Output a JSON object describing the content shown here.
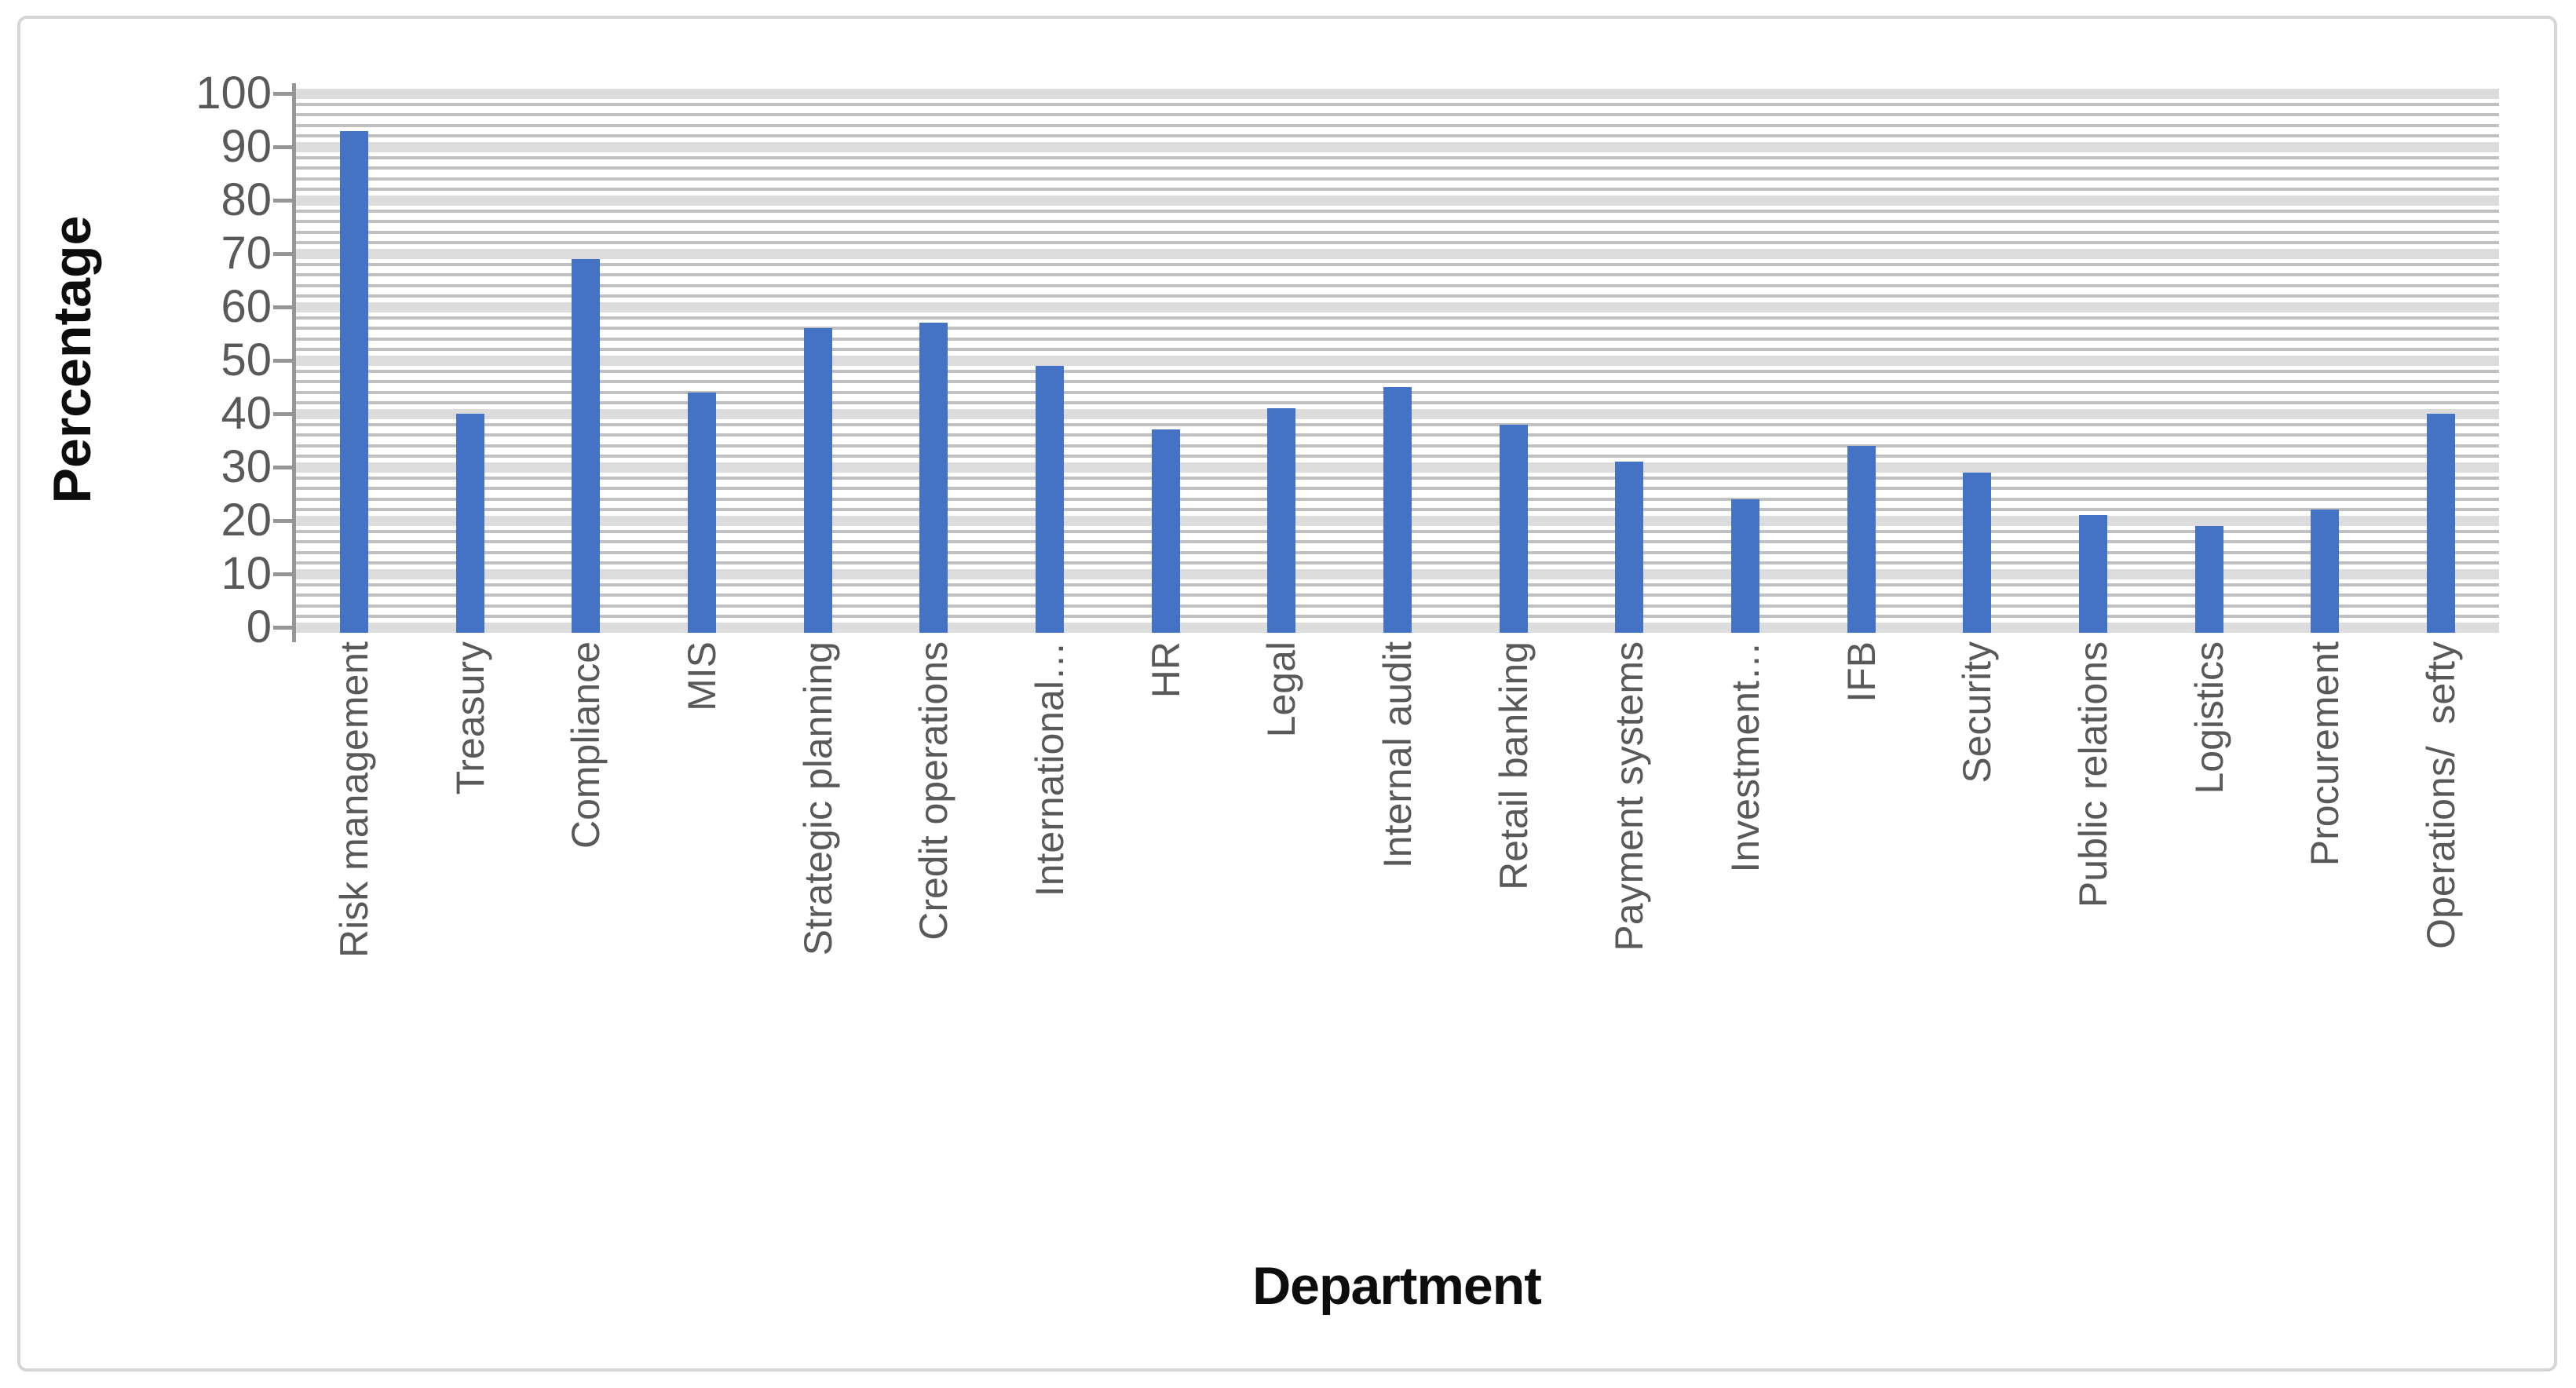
{
  "chart_data": {
    "type": "bar",
    "title": "",
    "xlabel": "Department",
    "ylabel": "Percentage",
    "categories": [
      "Risk management",
      "Treasury",
      "Compliance",
      "MIS",
      "Strategic planning",
      "Credit operations",
      "International…",
      "HR",
      "Legal",
      "Internal audit",
      "Retail banking",
      "Payment systems",
      "Investment…",
      "IFB",
      "Security",
      "Public relations",
      "Logistics",
      "Procurement",
      "Operations/  sefty"
    ],
    "values": [
      93,
      40,
      69,
      44,
      56,
      57,
      49,
      37,
      41,
      45,
      38,
      31,
      24,
      34,
      29,
      21,
      19,
      22,
      40
    ],
    "ylim": [
      0,
      100
    ],
    "ytick_step": 10,
    "yticks": [
      0,
      10,
      20,
      30,
      40,
      50,
      60,
      70,
      80,
      90,
      100
    ],
    "minor_grid_step": 2,
    "grid": true,
    "legend_position": "none",
    "bar_color": "#4472c4",
    "major_grid_color": "#dcdcdc",
    "minor_grid_color": "#c0c0c0",
    "axis_line_color": "#969696",
    "tick_label_color": "#595959",
    "category_label_color": "#595959",
    "title_color": "#0d0d0d",
    "frame_border_color": "#d6d6d6",
    "background_color": "#ffffff"
  }
}
